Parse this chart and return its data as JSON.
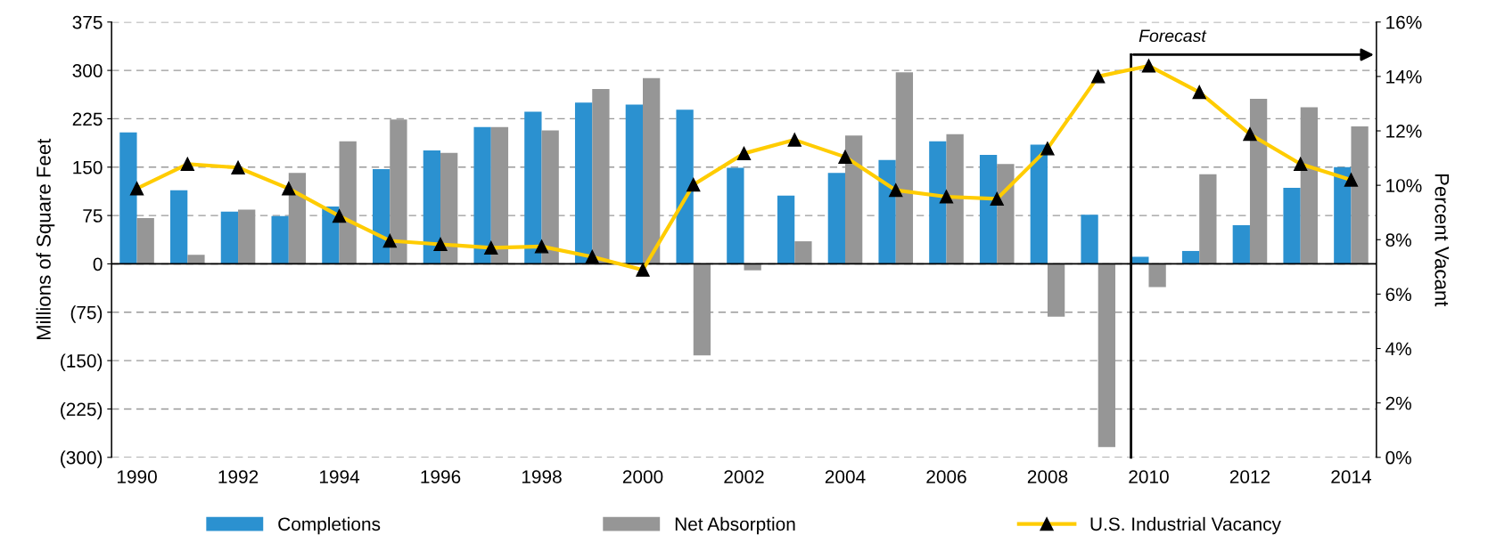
{
  "chart_data": {
    "type": "bar",
    "ylabel": "Millions of Square Feet",
    "y2label": "Percent Vacant",
    "x": [
      1990,
      1991,
      1992,
      1993,
      1994,
      1995,
      1996,
      1997,
      1998,
      1999,
      2000,
      2001,
      2002,
      2003,
      2004,
      2005,
      2006,
      2007,
      2008,
      2009,
      2010,
      2011,
      2012,
      2013,
      2014
    ],
    "xlim": [
      1989.5,
      2014.5
    ],
    "xticks": [
      1990,
      1992,
      1994,
      1996,
      1998,
      2000,
      2002,
      2004,
      2006,
      2008,
      2010,
      2012,
      2014
    ],
    "ylim": [
      -300,
      375
    ],
    "yticks": [
      {
        "value": -300,
        "label": "(300)"
      },
      {
        "value": -225,
        "label": "(225)"
      },
      {
        "value": -150,
        "label": "(150)"
      },
      {
        "value": -75,
        "label": "(75)"
      },
      0,
      75,
      150,
      225,
      300,
      375
    ],
    "y2lim": [
      0,
      16
    ],
    "y2ticks": [
      {
        "value": 0,
        "label": "0%"
      },
      {
        "value": 2,
        "label": "2%"
      },
      {
        "value": 4,
        "label": "4%"
      },
      {
        "value": 6,
        "label": "6%"
      },
      {
        "value": 8,
        "label": "8%"
      },
      {
        "value": 10,
        "label": "10%"
      },
      {
        "value": 12,
        "label": "12%"
      },
      {
        "value": 14,
        "label": "14%"
      },
      {
        "value": 16,
        "label": "16%"
      }
    ],
    "grid": "y",
    "legend": "bottom",
    "series": [
      {
        "name": "Completions",
        "color": "#2b91d0",
        "values": [
          204,
          114,
          81,
          74,
          89,
          147,
          176,
          212,
          236,
          250,
          247,
          239,
          149,
          106,
          141,
          161,
          190,
          169,
          185,
          76,
          11,
          20,
          60,
          118,
          150
        ]
      },
      {
        "name": "Net Absorption",
        "color": "#969696",
        "values": [
          71,
          14,
          84,
          141,
          190,
          224,
          172,
          212,
          207,
          271,
          288,
          -142,
          -10,
          35,
          199,
          297,
          201,
          155,
          -82,
          -284,
          -36,
          139,
          256,
          243,
          213
        ]
      },
      {
        "name": "U.S. Industrial Vacancy",
        "type": "line",
        "axis": "y2",
        "color": "#ffcc00",
        "marker": "triangle",
        "values": [
          9.88,
          10.78,
          10.65,
          9.88,
          8.87,
          7.96,
          7.83,
          7.7,
          7.75,
          7.37,
          6.89,
          10.02,
          11.17,
          11.67,
          11.04,
          9.82,
          9.58,
          9.5,
          11.35,
          14.0,
          14.39,
          13.42,
          11.88,
          10.78,
          10.2
        ]
      }
    ],
    "ref_lines": [
      {
        "axis": "x",
        "value": 2009.65,
        "label": "Forecast",
        "color": "#000000"
      }
    ]
  }
}
